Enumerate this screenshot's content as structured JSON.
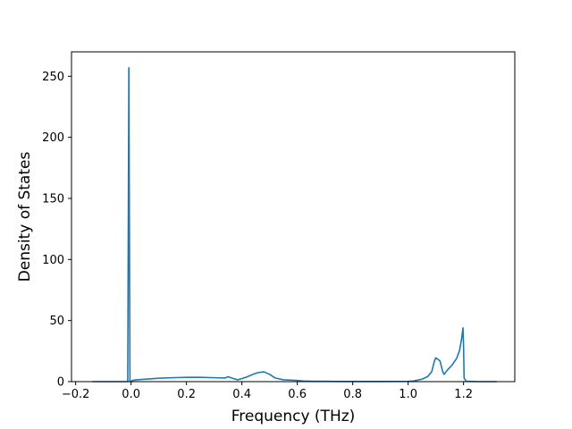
{
  "chart_data": {
    "type": "line",
    "title": "",
    "xlabel": "Frequency (THz)",
    "ylabel": "Density of States",
    "xlim": [
      -0.215,
      1.385
    ],
    "ylim": [
      0,
      270
    ],
    "x_ticks": [
      -0.2,
      0.0,
      0.2,
      0.4,
      0.6,
      0.8,
      1.0,
      1.2
    ],
    "x_tick_labels": [
      "−0.2",
      "0.0",
      "0.2",
      "0.4",
      "0.6",
      "0.8",
      "1.0",
      "1.2"
    ],
    "y_ticks": [
      0,
      50,
      100,
      150,
      200,
      250
    ],
    "y_tick_labels": [
      "0",
      "50",
      "100",
      "150",
      "200",
      "250"
    ],
    "grid": false,
    "legend": "none",
    "series_color": "#1f77b4",
    "series": [
      {
        "x": [
          -0.14,
          -0.1,
          -0.05,
          -0.02,
          -0.012,
          -0.008,
          -0.004,
          0.0,
          0.005,
          0.02,
          0.05,
          0.1,
          0.15,
          0.2,
          0.25,
          0.3,
          0.34,
          0.35,
          0.37,
          0.385,
          0.4,
          0.42,
          0.44,
          0.46,
          0.48,
          0.5,
          0.52,
          0.55,
          0.6,
          0.62,
          0.65,
          0.7,
          0.8,
          0.9,
          1.0,
          1.02,
          1.05,
          1.07,
          1.085,
          1.095,
          1.1,
          1.115,
          1.125,
          1.13,
          1.14,
          1.16,
          1.175,
          1.185,
          1.193,
          1.198,
          1.2,
          1.202,
          1.21,
          1.25,
          1.32
        ],
        "y": [
          0,
          0,
          0,
          0,
          0,
          257,
          0,
          0,
          1,
          1.5,
          2,
          2.8,
          3.2,
          3.5,
          3.5,
          3.2,
          3.0,
          4.0,
          2.5,
          1.5,
          2.5,
          4.0,
          6.0,
          7.5,
          8.0,
          6.0,
          3.0,
          1.5,
          1.0,
          0.5,
          0.3,
          0.2,
          0.1,
          0.1,
          0.2,
          0.5,
          2.0,
          4.0,
          8.0,
          17.0,
          19.5,
          17.0,
          8.0,
          6.0,
          9.0,
          14.0,
          19.0,
          25.0,
          35.0,
          44.0,
          30.0,
          3.0,
          0.2,
          0,
          0
        ]
      }
    ]
  }
}
